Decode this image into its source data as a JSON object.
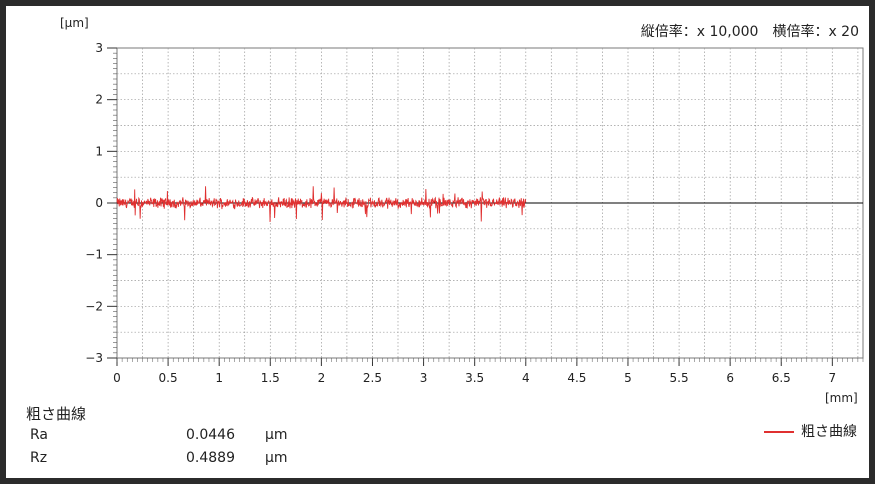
{
  "chart_data": {
    "type": "line",
    "y_unit": "[μm]",
    "x_unit": "[mm]",
    "scale_text": "縦倍率：x 10,000　横倍率：x 20",
    "xlim": [
      0,
      7.3
    ],
    "ylim": [
      -3,
      3
    ],
    "x_ticks": [
      "0",
      "0.5",
      "1",
      "1.5",
      "2",
      "2.5",
      "3",
      "3.5",
      "4",
      "4.5",
      "5",
      "5.5",
      "6",
      "6.5",
      "7"
    ],
    "y_ticks": [
      "3",
      "2",
      "1",
      "0",
      "-1",
      "-2",
      "-3"
    ],
    "grid": true,
    "series": [
      {
        "name": "粗さ曲線",
        "color": "#e03030",
        "x_start": 0,
        "x_end": 4.0,
        "y_min": -0.38,
        "y_max": 0.33
      }
    ],
    "baseline": {
      "y": 0,
      "color": "#000000"
    },
    "legend_position": "bottom-right"
  },
  "summary": {
    "title": "粗さ曲線",
    "rows": [
      {
        "label": "Ra",
        "value": "0.0446",
        "unit": "μm"
      },
      {
        "label": "Rz",
        "value": "0.4889",
        "unit": "μm"
      }
    ]
  },
  "legend": {
    "label": "粗さ曲線",
    "color": "#e03030"
  }
}
